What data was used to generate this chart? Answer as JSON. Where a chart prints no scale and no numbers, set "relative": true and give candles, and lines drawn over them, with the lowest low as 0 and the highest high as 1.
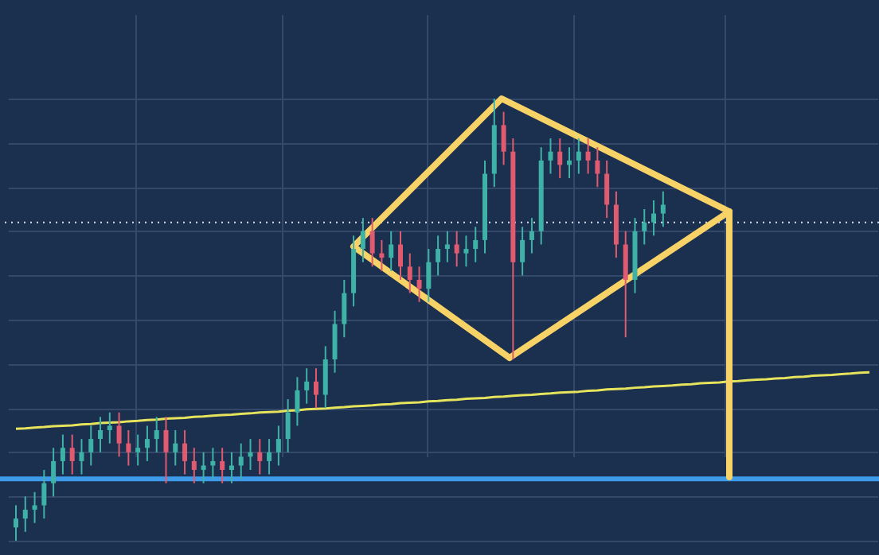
{
  "chart_data": {
    "type": "candlestick",
    "relative": true,
    "grid": true,
    "categories": [
      null,
      null,
      null,
      null,
      null,
      null,
      null,
      null,
      null,
      null,
      null,
      null,
      null,
      null,
      null,
      null,
      null,
      null,
      null,
      null,
      null,
      null,
      null,
      null,
      null,
      null,
      null,
      null,
      null,
      null,
      null,
      null,
      null,
      null,
      null,
      null,
      null,
      null,
      null,
      null,
      null,
      null,
      null,
      null,
      null,
      null,
      null,
      null,
      null,
      null,
      null,
      null,
      null,
      null,
      null,
      null,
      null,
      null,
      null,
      null,
      null,
      null,
      null,
      null,
      null,
      null,
      null,
      null,
      null,
      null,
      null,
      null,
      null,
      null,
      null,
      null,
      null,
      null,
      null,
      null,
      null,
      null,
      null,
      null,
      null,
      null,
      null,
      null,
      null,
      null,
      null,
      null
    ],
    "ohlc": [
      [
        0.03,
        0.08,
        0.0,
        0.05
      ],
      [
        0.05,
        0.1,
        0.02,
        0.07
      ],
      [
        0.07,
        0.11,
        0.04,
        0.08
      ],
      [
        0.08,
        0.16,
        0.05,
        0.13
      ],
      [
        0.13,
        0.21,
        0.1,
        0.18
      ],
      [
        0.18,
        0.24,
        0.15,
        0.21
      ],
      [
        0.21,
        0.24,
        0.15,
        0.18
      ],
      [
        0.18,
        0.23,
        0.15,
        0.2
      ],
      [
        0.2,
        0.26,
        0.17,
        0.23
      ],
      [
        0.23,
        0.28,
        0.2,
        0.25
      ],
      [
        0.25,
        0.29,
        0.22,
        0.26
      ],
      [
        0.26,
        0.29,
        0.19,
        0.22
      ],
      [
        0.22,
        0.25,
        0.17,
        0.2
      ],
      [
        0.2,
        0.24,
        0.17,
        0.21
      ],
      [
        0.21,
        0.26,
        0.18,
        0.23
      ],
      [
        0.23,
        0.28,
        0.2,
        0.25
      ],
      [
        0.25,
        0.28,
        0.13,
        0.2
      ],
      [
        0.2,
        0.25,
        0.17,
        0.22
      ],
      [
        0.22,
        0.25,
        0.15,
        0.18
      ],
      [
        0.18,
        0.21,
        0.13,
        0.16
      ],
      [
        0.16,
        0.2,
        0.13,
        0.17
      ],
      [
        0.17,
        0.21,
        0.14,
        0.18
      ],
      [
        0.18,
        0.21,
        0.13,
        0.16
      ],
      [
        0.16,
        0.2,
        0.13,
        0.17
      ],
      [
        0.17,
        0.22,
        0.14,
        0.19
      ],
      [
        0.19,
        0.23,
        0.16,
        0.2
      ],
      [
        0.2,
        0.23,
        0.15,
        0.18
      ],
      [
        0.18,
        0.23,
        0.15,
        0.2
      ],
      [
        0.2,
        0.26,
        0.17,
        0.23
      ],
      [
        0.23,
        0.32,
        0.2,
        0.29
      ],
      [
        0.29,
        0.37,
        0.26,
        0.34
      ],
      [
        0.34,
        0.39,
        0.31,
        0.36
      ],
      [
        0.36,
        0.39,
        0.3,
        0.33
      ],
      [
        0.33,
        0.44,
        0.3,
        0.41
      ],
      [
        0.41,
        0.52,
        0.38,
        0.49
      ],
      [
        0.49,
        0.59,
        0.46,
        0.56
      ],
      [
        0.56,
        0.69,
        0.53,
        0.66
      ],
      [
        0.66,
        0.73,
        0.63,
        0.7
      ],
      [
        0.7,
        0.73,
        0.62,
        0.65
      ],
      [
        0.65,
        0.68,
        0.61,
        0.64
      ],
      [
        0.64,
        0.7,
        0.61,
        0.67
      ],
      [
        0.67,
        0.7,
        0.59,
        0.62
      ],
      [
        0.62,
        0.65,
        0.56,
        0.59
      ],
      [
        0.59,
        0.62,
        0.54,
        0.57
      ],
      [
        0.57,
        0.66,
        0.54,
        0.63
      ],
      [
        0.63,
        0.69,
        0.6,
        0.66
      ],
      [
        0.66,
        0.7,
        0.63,
        0.67
      ],
      [
        0.67,
        0.7,
        0.62,
        0.65
      ],
      [
        0.65,
        0.69,
        0.62,
        0.66
      ],
      [
        0.66,
        0.71,
        0.63,
        0.68
      ],
      [
        0.68,
        0.86,
        0.65,
        0.83
      ],
      [
        0.83,
        1.0,
        0.8,
        0.94
      ],
      [
        0.94,
        0.97,
        0.85,
        0.88
      ],
      [
        0.88,
        0.91,
        0.41,
        0.63
      ],
      [
        0.63,
        0.71,
        0.6,
        0.68
      ],
      [
        0.68,
        0.73,
        0.65,
        0.7
      ],
      [
        0.7,
        0.89,
        0.67,
        0.86
      ],
      [
        0.86,
        0.91,
        0.83,
        0.88
      ],
      [
        0.88,
        0.91,
        0.82,
        0.85
      ],
      [
        0.85,
        0.89,
        0.82,
        0.86
      ],
      [
        0.86,
        0.91,
        0.83,
        0.88
      ],
      [
        0.88,
        0.91,
        0.83,
        0.86
      ],
      [
        0.86,
        0.89,
        0.8,
        0.83
      ],
      [
        0.83,
        0.86,
        0.73,
        0.76
      ],
      [
        0.76,
        0.79,
        0.64,
        0.67
      ],
      [
        0.67,
        0.7,
        0.46,
        0.59
      ],
      [
        0.59,
        0.73,
        0.56,
        0.7
      ],
      [
        0.7,
        0.75,
        0.67,
        0.72
      ],
      [
        0.72,
        0.77,
        0.69,
        0.74
      ],
      [
        0.74,
        0.79,
        0.71,
        0.76
      ],
      null,
      null,
      null,
      null,
      null,
      null,
      null,
      null,
      null,
      null,
      null,
      null,
      null,
      null,
      null,
      null,
      null,
      null,
      null,
      null,
      null,
      null
    ],
    "series": [
      {
        "type": "line",
        "color": "#e6e35c",
        "values": [
          0.253,
          0.254,
          0.256,
          0.257,
          0.259,
          0.26,
          0.261,
          0.263,
          0.264,
          0.266,
          0.267,
          0.268,
          0.27,
          0.271,
          0.273,
          0.274,
          0.276,
          0.277,
          0.278,
          0.28,
          0.281,
          0.283,
          0.284,
          0.285,
          0.287,
          0.288,
          0.29,
          0.291,
          0.292,
          0.294,
          0.295,
          0.297,
          0.298,
          0.299,
          0.301,
          0.302,
          0.304,
          0.305,
          0.306,
          0.308,
          0.309,
          0.311,
          0.312,
          0.313,
          0.315,
          0.316,
          0.318,
          0.319,
          0.321,
          0.322,
          0.323,
          0.325,
          0.326,
          0.328,
          0.329,
          0.33,
          0.332,
          0.333,
          0.335,
          0.336,
          0.337,
          0.339,
          0.34,
          0.342,
          0.343,
          0.344,
          0.346,
          0.347,
          0.349,
          0.35,
          0.351,
          0.353,
          0.354,
          0.356,
          0.357,
          0.358,
          0.36,
          0.361,
          0.363,
          0.364,
          0.365,
          0.367,
          0.368,
          0.37,
          0.371,
          0.373,
          0.374,
          0.375,
          0.377,
          0.378,
          0.38,
          0.381
        ]
      }
    ],
    "ref_lines": [
      {
        "axis": "y",
        "value": 0.14,
        "color": "#3d9be9",
        "line_style": "solid"
      },
      {
        "axis": "y",
        "value": 0.72,
        "color": "#d8dde6",
        "line_style": "dotted"
      }
    ]
  }
}
